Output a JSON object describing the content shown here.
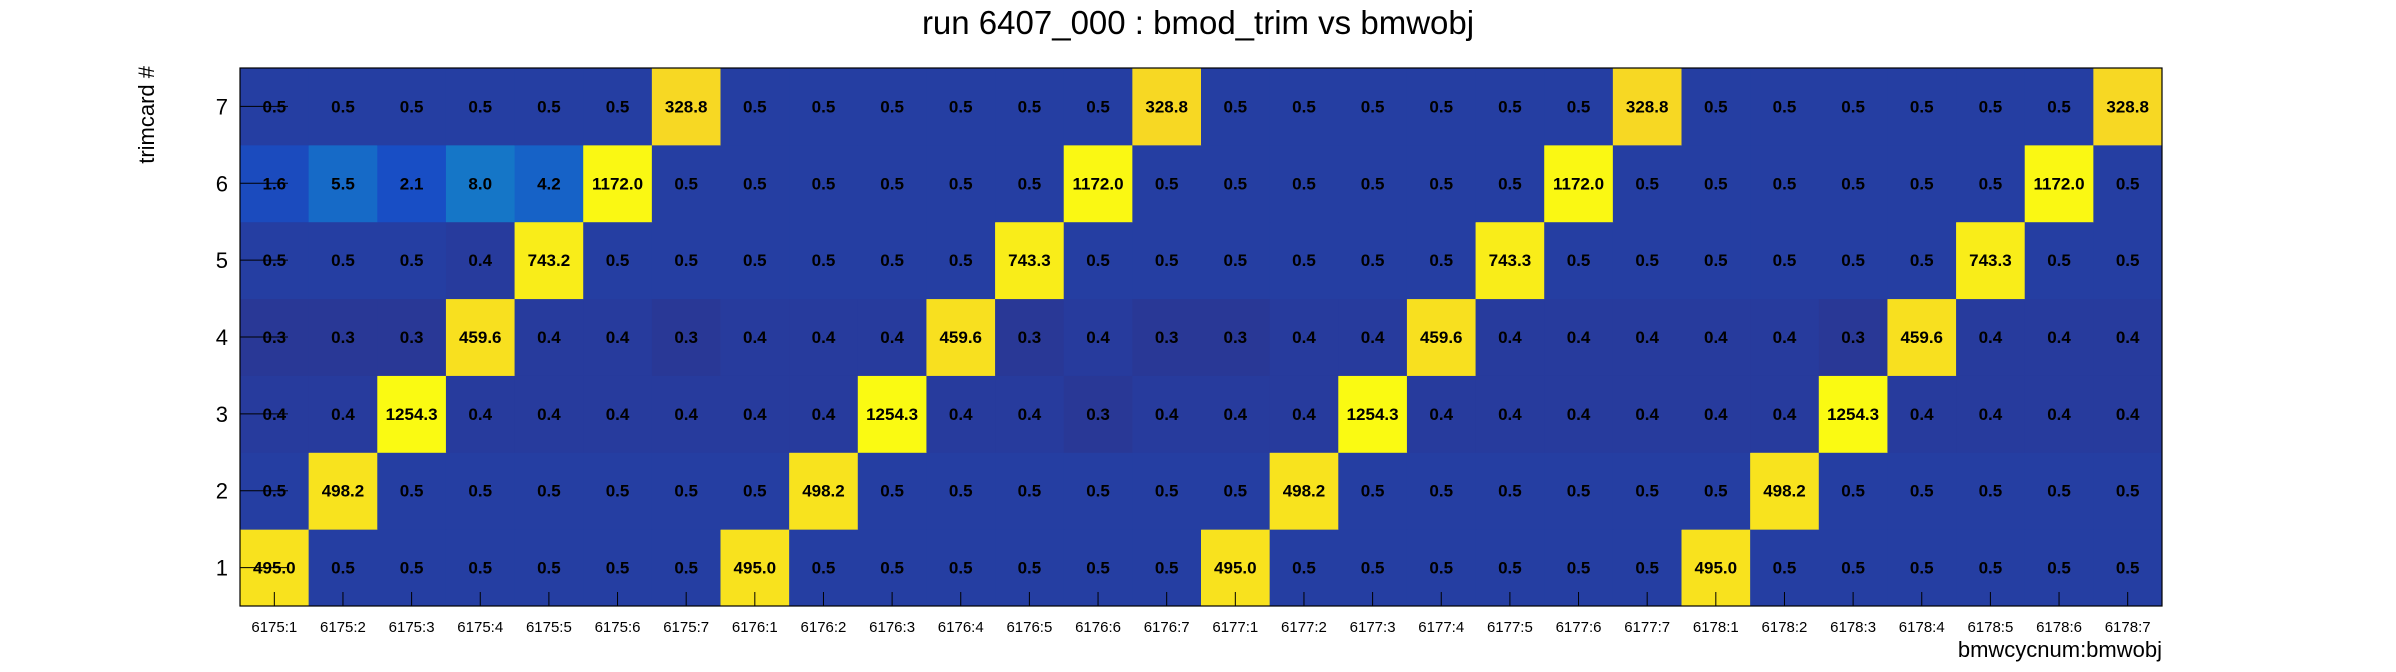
{
  "chart_data": {
    "type": "heatmap",
    "title": "run 6407_000 : bmod_trim vs bmwobj",
    "xlabel": "bmwcycnum:bmwobj",
    "ylabel": "trimcard #",
    "x_categories": [
      "6175:1",
      "6175:2",
      "6175:3",
      "6175:4",
      "6175:5",
      "6175:6",
      "6175:7",
      "6176:1",
      "6176:2",
      "6176:3",
      "6176:4",
      "6176:5",
      "6176:6",
      "6176:7",
      "6177:1",
      "6177:2",
      "6177:3",
      "6177:4",
      "6177:5",
      "6177:6",
      "6177:7",
      "6178:1",
      "6178:2",
      "6178:3",
      "6178:4",
      "6178:5",
      "6178:6",
      "6178:7"
    ],
    "y_categories": [
      "1",
      "2",
      "3",
      "4",
      "5",
      "6",
      "7"
    ],
    "value_labels": [
      [
        "495.0",
        "0.5",
        "0.5",
        "0.5",
        "0.5",
        "0.5",
        "0.5",
        "495.0",
        "0.5",
        "0.5",
        "0.5",
        "0.5",
        "0.5",
        "0.5",
        "495.0",
        "0.5",
        "0.5",
        "0.5",
        "0.5",
        "0.5",
        "0.5",
        "495.0",
        "0.5",
        "0.5",
        "0.5",
        "0.5",
        "0.5",
        "0.5"
      ],
      [
        "0.5",
        "498.2",
        "0.5",
        "0.5",
        "0.5",
        "0.5",
        "0.5",
        "0.5",
        "498.2",
        "0.5",
        "0.5",
        "0.5",
        "0.5",
        "0.5",
        "0.5",
        "498.2",
        "0.5",
        "0.5",
        "0.5",
        "0.5",
        "0.5",
        "0.5",
        "498.2",
        "0.5",
        "0.5",
        "0.5",
        "0.5",
        "0.5"
      ],
      [
        "0.4",
        "0.4",
        "1254.3",
        "0.4",
        "0.4",
        "0.4",
        "0.4",
        "0.4",
        "0.4",
        "1254.3",
        "0.4",
        "0.4",
        "0.3",
        "0.4",
        "0.4",
        "0.4",
        "1254.3",
        "0.4",
        "0.4",
        "0.4",
        "0.4",
        "0.4",
        "0.4",
        "1254.3",
        "0.4",
        "0.4",
        "0.4",
        "0.4"
      ],
      [
        "0.3",
        "0.3",
        "0.3",
        "459.6",
        "0.4",
        "0.4",
        "0.3",
        "0.4",
        "0.4",
        "0.4",
        "459.6",
        "0.3",
        "0.4",
        "0.3",
        "0.3",
        "0.4",
        "0.4",
        "459.6",
        "0.4",
        "0.4",
        "0.4",
        "0.4",
        "0.4",
        "0.3",
        "459.6",
        "0.4",
        "0.4",
        "0.4"
      ],
      [
        "0.5",
        "0.5",
        "0.5",
        "0.4",
        "743.2",
        "0.5",
        "0.5",
        "0.5",
        "0.5",
        "0.5",
        "0.5",
        "743.3",
        "0.5",
        "0.5",
        "0.5",
        "0.5",
        "0.5",
        "0.5",
        "743.3",
        "0.5",
        "0.5",
        "0.5",
        "0.5",
        "0.5",
        "0.5",
        "743.3",
        "0.5",
        "0.5"
      ],
      [
        "1.6",
        "5.5",
        "2.1",
        "8.0",
        "4.2",
        "1172.0",
        "0.5",
        "0.5",
        "0.5",
        "0.5",
        "0.5",
        "0.5",
        "1172.0",
        "0.5",
        "0.5",
        "0.5",
        "0.5",
        "0.5",
        "0.5",
        "1172.0",
        "0.5",
        "0.5",
        "0.5",
        "0.5",
        "0.5",
        "0.5",
        "1172.0",
        "0.5"
      ],
      [
        "0.5",
        "0.5",
        "0.5",
        "0.5",
        "0.5",
        "0.5",
        "328.8",
        "0.5",
        "0.5",
        "0.5",
        "0.5",
        "0.5",
        "0.5",
        "328.8",
        "0.5",
        "0.5",
        "0.5",
        "0.5",
        "0.5",
        "0.5",
        "328.8",
        "0.5",
        "0.5",
        "0.5",
        "0.5",
        "0.5",
        "0.5",
        "328.8"
      ]
    ],
    "color_scale": "log",
    "colormap": [
      "#293896",
      "#1750c8",
      "#1492c6",
      "#f5c52c",
      "#fafa12"
    ],
    "grid": false,
    "legend": "none"
  }
}
